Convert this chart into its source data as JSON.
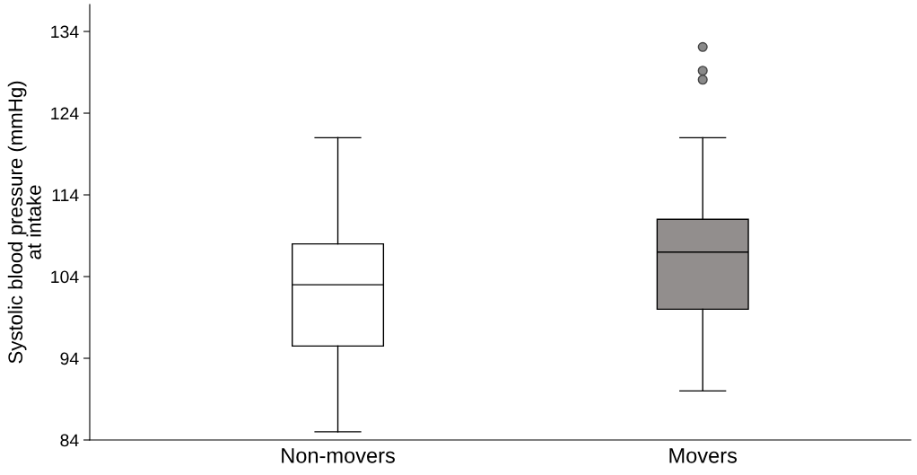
{
  "chart_data": {
    "type": "box",
    "ylabel": "Systolic blood pressure (mmHg)\nat intake",
    "categories": [
      "Non-movers",
      "Movers"
    ],
    "boxes": [
      {
        "low": 85,
        "q1": 95.5,
        "median": 103,
        "q3": 108,
        "high": 121
      },
      {
        "low": 90,
        "q1": 100,
        "median": 107,
        "q3": 111,
        "high": 121,
        "outliers": [
          132.1,
          129.2,
          128.1
        ]
      }
    ],
    "colors": [
      "#ffffff",
      "#928e8d"
    ],
    "ylim": [
      84,
      137.3
    ],
    "yticks": [
      84,
      94,
      104,
      114,
      124,
      134
    ],
    "grid": false
  }
}
